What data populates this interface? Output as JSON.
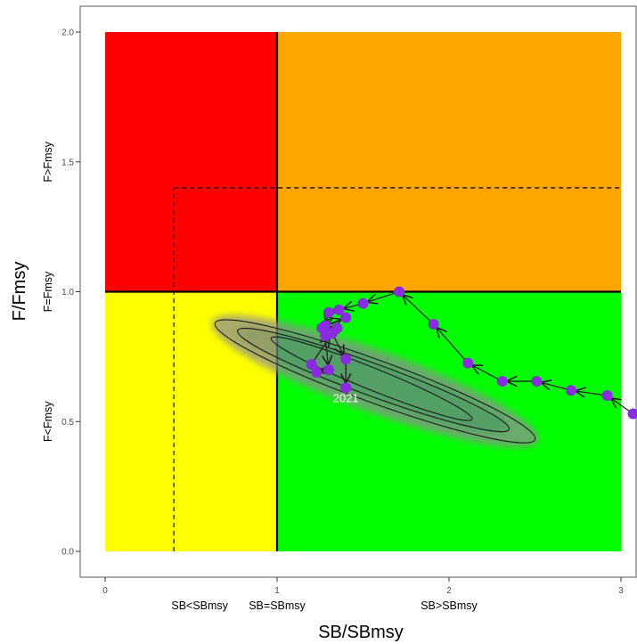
{
  "chart_data": {
    "type": "scatter",
    "xlabel": "SB/SBmsy",
    "ylabel": "F/Fmsy",
    "xlim": [
      -0.15,
      3.1
    ],
    "ylim": [
      -0.1,
      2.1
    ],
    "x_ticks": [
      0,
      1,
      2,
      3
    ],
    "y_ticks": [
      0.0,
      0.5,
      1.0,
      1.5,
      2.0
    ],
    "x_tick_labels": [
      "0",
      "1",
      "2",
      "3"
    ],
    "y_tick_labels": [
      "0.0",
      "0.5",
      "1.0",
      "1.5",
      "2.0"
    ],
    "x_zone_labels": [
      {
        "x": 0.55,
        "text": "SB<SBmsy"
      },
      {
        "x": 1.0,
        "text": "SB=SBmsy"
      },
      {
        "x": 2.0,
        "text": "SB>SBmsy"
      }
    ],
    "y_zone_labels": [
      {
        "y": 0.5,
        "text": "F<Fmsy"
      },
      {
        "y": 1.0,
        "text": "F=Fmsy"
      },
      {
        "y": 1.5,
        "text": "F>Fmsy"
      }
    ],
    "quadrants": [
      {
        "name": "overfished-and-overfishing",
        "x": [
          0,
          1
        ],
        "y": [
          1,
          2
        ],
        "color": "#ff0000"
      },
      {
        "name": "overfishing-only",
        "x": [
          1,
          3
        ],
        "y": [
          1,
          2
        ],
        "color": "#ffa500"
      },
      {
        "name": "overfished-only",
        "x": [
          0,
          1
        ],
        "y": [
          0,
          1
        ],
        "color": "#ffff00"
      },
      {
        "name": "healthy",
        "x": [
          1,
          3
        ],
        "y": [
          0,
          1
        ],
        "color": "#00ff00"
      }
    ],
    "reference_lines": {
      "solid_x": 1.0,
      "solid_y": 1.0,
      "dashed_x": 0.4,
      "dashed_y": 1.4
    },
    "uncertainty_contours": [
      {
        "level": "inner",
        "center": [
          1.55,
          0.665
        ],
        "rx": 0.63,
        "ry": 0.042,
        "angle_deg": 22
      },
      {
        "level": "middle",
        "center": [
          1.56,
          0.66
        ],
        "rx": 0.84,
        "ry": 0.062,
        "angle_deg": 20
      },
      {
        "level": "outer",
        "center": [
          1.57,
          0.655
        ],
        "rx": 0.99,
        "ry": 0.082,
        "angle_deg": 20
      }
    ],
    "trajectory": {
      "series_color": "#8a2be2",
      "points": [
        {
          "x": 3.07,
          "y": 0.53
        },
        {
          "x": 2.92,
          "y": 0.6
        },
        {
          "x": 2.71,
          "y": 0.62
        },
        {
          "x": 2.51,
          "y": 0.655
        },
        {
          "x": 2.31,
          "y": 0.655
        },
        {
          "x": 2.11,
          "y": 0.725
        },
        {
          "x": 1.91,
          "y": 0.875
        },
        {
          "x": 1.71,
          "y": 1.0
        },
        {
          "x": 1.5,
          "y": 0.955
        },
        {
          "x": 1.36,
          "y": 0.93
        },
        {
          "x": 1.3,
          "y": 0.92
        },
        {
          "x": 1.28,
          "y": 0.87
        },
        {
          "x": 1.4,
          "y": 0.9
        },
        {
          "x": 1.26,
          "y": 0.86
        },
        {
          "x": 1.35,
          "y": 0.86
        },
        {
          "x": 1.28,
          "y": 0.83
        },
        {
          "x": 1.3,
          "y": 0.7
        },
        {
          "x": 1.23,
          "y": 0.69
        },
        {
          "x": 1.2,
          "y": 0.72
        },
        {
          "x": 1.32,
          "y": 0.84
        },
        {
          "x": 1.4,
          "y": 0.74
        },
        {
          "x": 1.4,
          "y": 0.63
        }
      ],
      "final_label": "2021"
    }
  }
}
